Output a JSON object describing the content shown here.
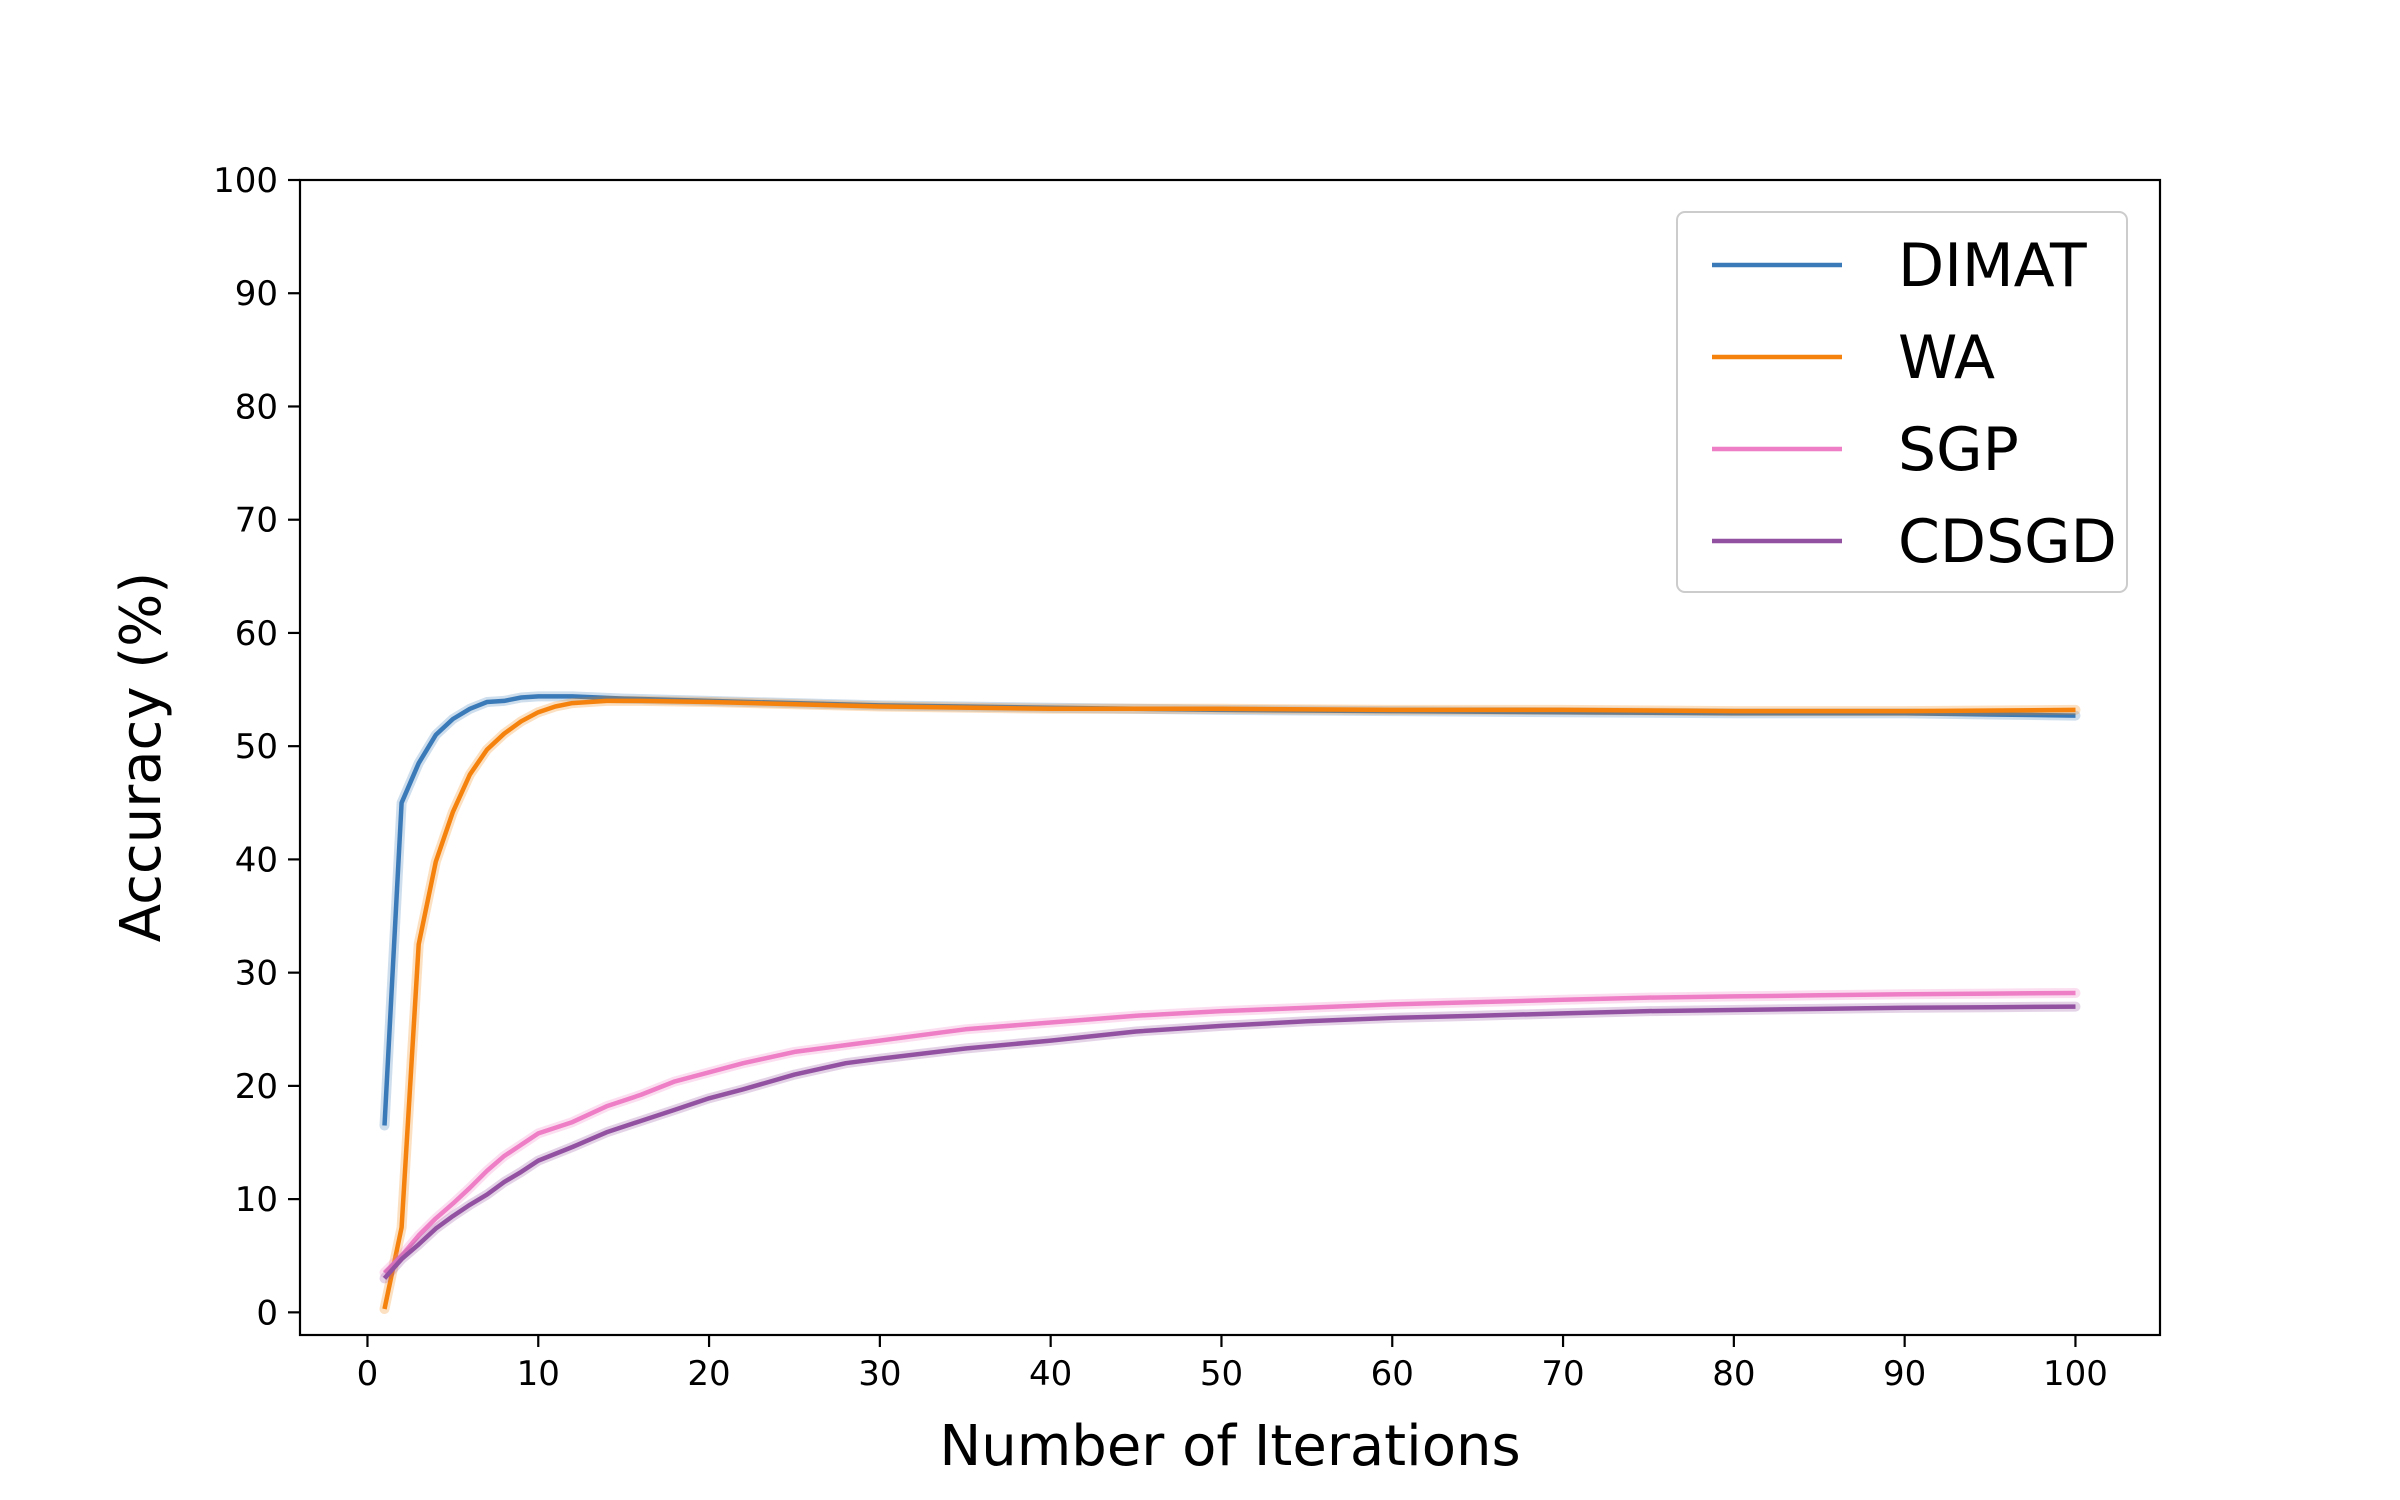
{
  "chart_data": {
    "type": "line",
    "title": "",
    "xlabel": "Number of Iterations",
    "ylabel": "Accuracy (%)",
    "xlim": [
      -3.95,
      104.95
    ],
    "ylim": [
      -2,
      100
    ],
    "xticks": [
      0,
      10,
      20,
      30,
      40,
      50,
      60,
      70,
      80,
      90,
      100
    ],
    "yticks": [
      0,
      10,
      20,
      30,
      40,
      50,
      60,
      70,
      80,
      90,
      100
    ],
    "legend_position": "top-right",
    "grid": false,
    "series": [
      {
        "name": "DIMAT",
        "color": "#3b7ab8",
        "x": [
          1,
          2,
          3,
          4,
          5,
          6,
          7,
          8,
          9,
          10,
          12,
          15,
          20,
          30,
          40,
          50,
          60,
          70,
          80,
          90,
          95,
          100
        ],
        "y": [
          16.5,
          45.0,
          48.5,
          51.0,
          52.4,
          53.3,
          53.9,
          54.0,
          54.3,
          54.4,
          54.4,
          54.2,
          54.0,
          53.6,
          53.4,
          53.2,
          53.1,
          53.0,
          52.9,
          52.9,
          52.8,
          52.7
        ]
      },
      {
        "name": "WA",
        "color": "#f5820d",
        "x": [
          1,
          2,
          3,
          4,
          5,
          6,
          7,
          8,
          9,
          10,
          11,
          12,
          14,
          16,
          20,
          30,
          40,
          50,
          60,
          70,
          80,
          90,
          100
        ],
        "y": [
          0.3,
          7.5,
          32.5,
          39.8,
          44.2,
          47.5,
          49.7,
          51.1,
          52.2,
          53.0,
          53.5,
          53.8,
          54.0,
          54.0,
          53.9,
          53.5,
          53.3,
          53.3,
          53.2,
          53.2,
          53.1,
          53.1,
          53.2
        ]
      },
      {
        "name": "SGP",
        "color": "#ee7ec5",
        "x": [
          1,
          2,
          3,
          4,
          5,
          6,
          7,
          8,
          9,
          10,
          12,
          14,
          16,
          18,
          20,
          22,
          25,
          28,
          30,
          35,
          40,
          45,
          50,
          55,
          60,
          65,
          70,
          75,
          80,
          85,
          90,
          95,
          100
        ],
        "y": [
          3.5,
          5.0,
          6.8,
          8.3,
          9.6,
          11.0,
          12.5,
          13.8,
          14.8,
          15.8,
          16.8,
          18.2,
          19.2,
          20.4,
          21.2,
          22.0,
          23.0,
          23.6,
          24.0,
          25.0,
          25.6,
          26.2,
          26.6,
          26.9,
          27.2,
          27.4,
          27.6,
          27.8,
          27.9,
          28.0,
          28.1,
          28.15,
          28.2
        ]
      },
      {
        "name": "CDSGD",
        "color": "#9251a1",
        "x": [
          1,
          2,
          3,
          4,
          5,
          6,
          7,
          8,
          9,
          10,
          12,
          14,
          16,
          18,
          20,
          22,
          25,
          28,
          30,
          35,
          40,
          45,
          50,
          55,
          60,
          65,
          70,
          75,
          80,
          85,
          90,
          95,
          100
        ],
        "y": [
          3.0,
          4.7,
          6.0,
          7.4,
          8.5,
          9.5,
          10.4,
          11.5,
          12.4,
          13.4,
          14.6,
          15.9,
          16.9,
          17.9,
          18.9,
          19.7,
          21.0,
          22.0,
          22.4,
          23.3,
          24.0,
          24.8,
          25.3,
          25.7,
          26.0,
          26.2,
          26.4,
          26.6,
          26.7,
          26.8,
          26.9,
          26.95,
          27.0
        ]
      }
    ]
  }
}
